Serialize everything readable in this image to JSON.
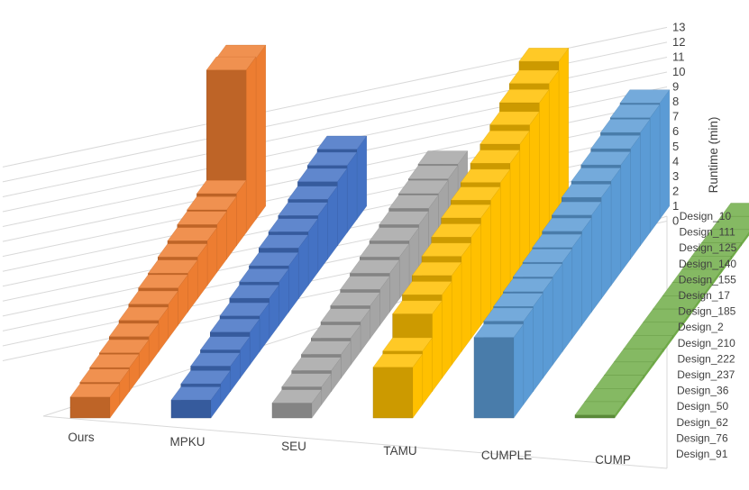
{
  "chart_data": {
    "type": "bar",
    "subtype": "3d-column",
    "ylabel": "Runtime (min)",
    "ylim": [
      0,
      13
    ],
    "y_ticks": [
      "0",
      "1",
      "2",
      "3",
      "4",
      "5",
      "6",
      "7",
      "8",
      "9",
      "10",
      "11",
      "12",
      "13"
    ],
    "depth_axis_labels": [
      "Design_10",
      "Design_111",
      "Design_125",
      "Design_140",
      "Design_155",
      "Design_17",
      "Design_185",
      "Design_2",
      "Design_210",
      "Design_222",
      "Design_237",
      "Design_36",
      "Design_50",
      "Design_62",
      "Design_76",
      "Design_91"
    ],
    "grid": true,
    "series": [
      {
        "name": "Ours",
        "color": "#ED7D31",
        "values": [
          1.4,
          1.5,
          1.6,
          1.7,
          1.9,
          2.1,
          2.3,
          2.5,
          2.6,
          2.8,
          3.0,
          3.2,
          3.3,
          3.5,
          10.9,
          10.8
        ]
      },
      {
        "name": "MPKU",
        "color": "#4472C4",
        "values": [
          1.2,
          1.4,
          1.7,
          1.9,
          2.2,
          2.4,
          2.7,
          2.9,
          3.1,
          3.4,
          3.6,
          3.8,
          4.0,
          4.3,
          4.5,
          4.7
        ]
      },
      {
        "name": "SEU",
        "color": "#A5A5A5",
        "values": [
          1.0,
          1.2,
          1.4,
          1.6,
          1.8,
          2.0,
          2.2,
          2.4,
          2.6,
          2.8,
          3.0,
          3.2,
          3.4,
          3.5,
          3.6,
          3.7
        ]
      },
      {
        "name": "TAMU",
        "color": "#FFC000",
        "values": [
          3.4,
          3.6,
          5.2,
          5.6,
          6.0,
          6.4,
          6.8,
          7.2,
          7.5,
          7.8,
          8.2,
          8.6,
          9.0,
          9.6,
          10.0,
          10.6
        ]
      },
      {
        "name": "CUMPLE",
        "color": "#5B9BD5",
        "values": [
          5.4,
          5.6,
          5.7,
          5.8,
          5.9,
          6.0,
          6.1,
          6.3,
          6.5,
          6.8,
          7.0,
          7.2,
          7.4,
          7.6,
          7.7,
          7.8
        ]
      },
      {
        "name": "CUMP",
        "color": "#70AD47",
        "values": [
          0.2,
          0.2,
          0.2,
          0.2,
          0.2,
          0.2,
          0.2,
          0.2,
          0.2,
          0.2,
          0.2,
          0.2,
          0.2,
          0.2,
          0.2,
          0.2
        ]
      }
    ]
  }
}
